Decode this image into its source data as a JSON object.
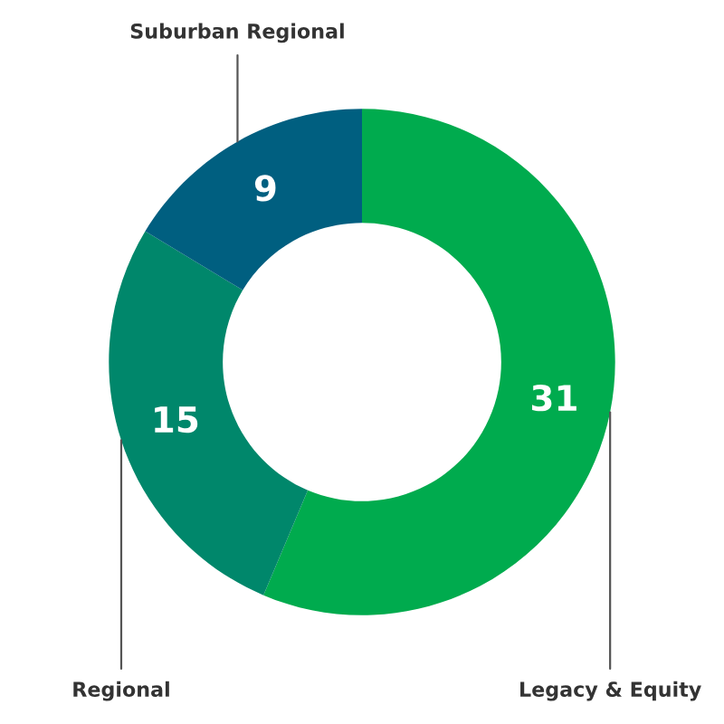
{
  "chart_data": {
    "type": "donut",
    "categories": [
      "Legacy & Equity",
      "Regional",
      "Suburban Regional"
    ],
    "values": [
      31,
      15,
      9
    ],
    "colors": [
      "#00ab4e",
      "#00876b",
      "#005f80"
    ],
    "data_labels": true
  }
}
